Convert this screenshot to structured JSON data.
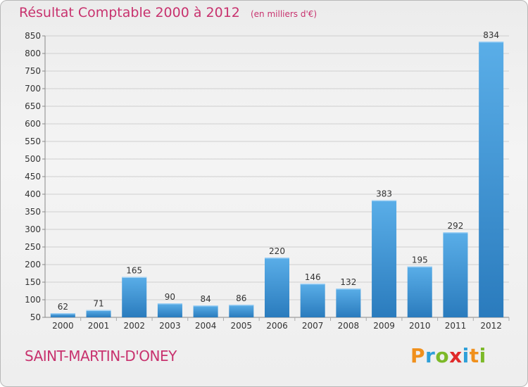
{
  "title": "Résultat Comptable 2000 à 2012",
  "subtitle": "(en milliers d'€)",
  "commune": "SAINT-MARTIN-D'ONEY",
  "logo": {
    "letters": [
      "P",
      "r",
      "o",
      "x",
      "i",
      "t",
      "i"
    ],
    "colors": [
      "#f0901c",
      "#2e9fd8",
      "#7cb928",
      "#e02a2a",
      "#2e9fd8",
      "#f0901c",
      "#7cb928"
    ]
  },
  "colors": {
    "accent": "#c8326e",
    "bar_light": "#5aaee8",
    "bar_dark": "#2a7bbd"
  },
  "chart_data": {
    "type": "bar",
    "categories": [
      "2000",
      "2001",
      "2002",
      "2003",
      "2004",
      "2005",
      "2006",
      "2007",
      "2008",
      "2009",
      "2010",
      "2011",
      "2012"
    ],
    "values": [
      62,
      71,
      165,
      90,
      84,
      86,
      220,
      146,
      132,
      383,
      195,
      292,
      834
    ],
    "data_labels": [
      "62",
      "71",
      "165",
      "90",
      "84",
      "86",
      "220",
      "146",
      "132",
      "383",
      "195",
      "292",
      "834"
    ],
    "ylim": [
      50,
      850
    ],
    "yticks": [
      50,
      100,
      150,
      200,
      250,
      300,
      350,
      400,
      450,
      500,
      550,
      600,
      650,
      700,
      750,
      800,
      850
    ],
    "ytick_labels": [
      "50",
      "100",
      "150",
      "200",
      "250",
      "300",
      "350",
      "400",
      "450",
      "500",
      "550",
      "600",
      "650",
      "700",
      "750",
      "800",
      "850"
    ],
    "grid": true
  }
}
